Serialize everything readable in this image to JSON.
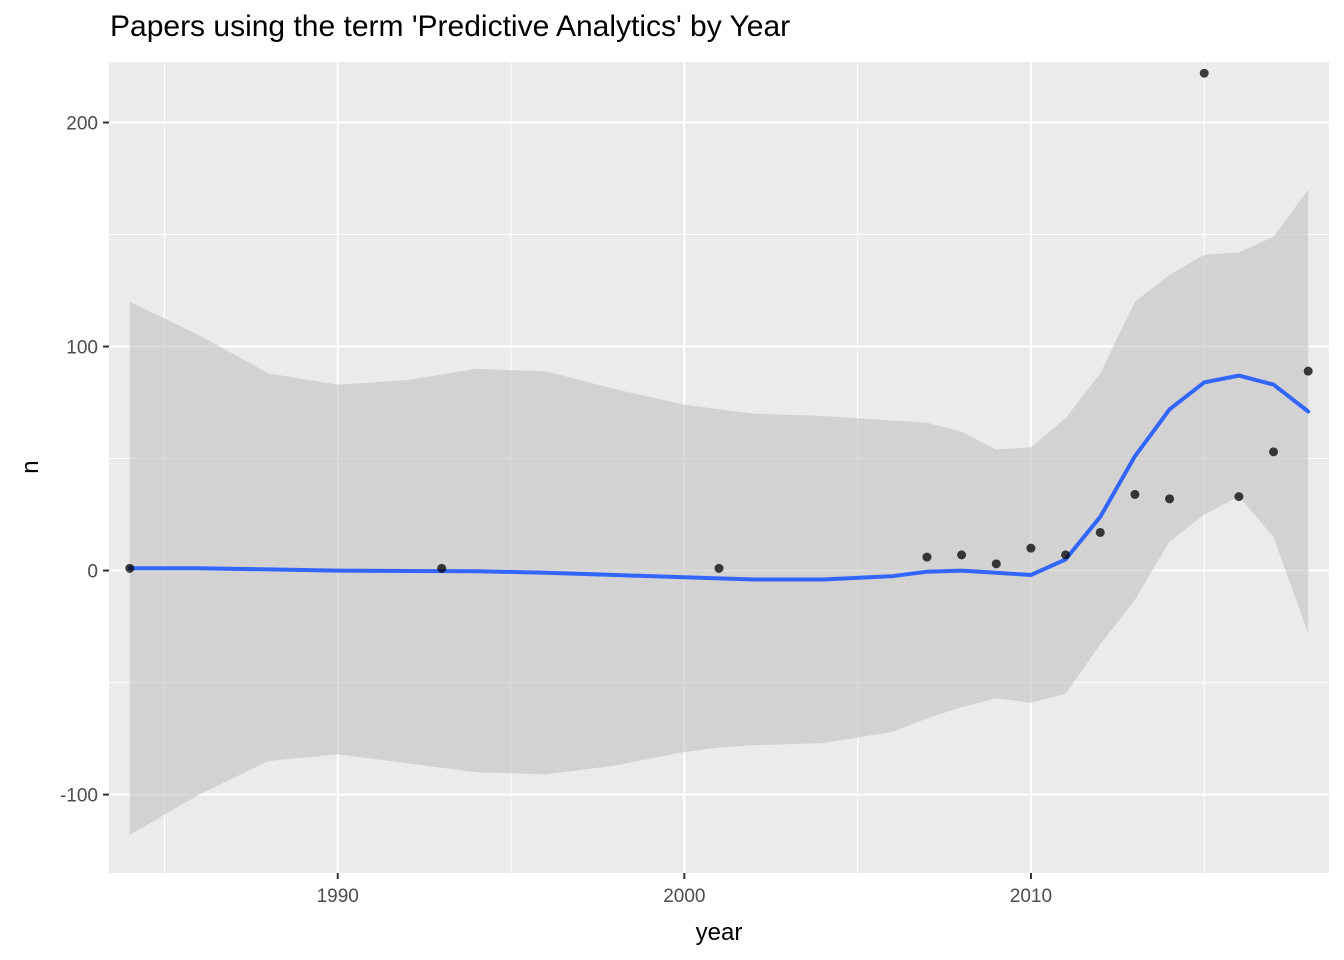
{
  "chart_data": {
    "type": "scatter",
    "title": "Papers using the term 'Predictive Analytics' by Year",
    "xlabel": "year",
    "ylabel": "n",
    "xlim": [
      1983.4,
      2018.6
    ],
    "ylim": [
      -135,
      227
    ],
    "x_ticks": [
      1990,
      2000,
      2010
    ],
    "y_ticks": [
      -100,
      0,
      100,
      200
    ],
    "x_tick_labels": [
      "1990",
      "2000",
      "2010"
    ],
    "y_tick_labels": [
      "-100",
      "0",
      "100",
      "200"
    ],
    "grid": true,
    "legend": "none",
    "colors": {
      "panel": "#ebebeb",
      "grid": "#ffffff",
      "points": "#000000",
      "smooth_line": "#3366ff",
      "ribbon": "#bdbdbd"
    },
    "points": [
      {
        "x": 1984,
        "y": 1
      },
      {
        "x": 1993,
        "y": 1
      },
      {
        "x": 2001,
        "y": 1
      },
      {
        "x": 2007,
        "y": 6
      },
      {
        "x": 2008,
        "y": 7
      },
      {
        "x": 2009,
        "y": 3
      },
      {
        "x": 2010,
        "y": 10
      },
      {
        "x": 2011,
        "y": 7
      },
      {
        "x": 2012,
        "y": 17
      },
      {
        "x": 2013,
        "y": 34
      },
      {
        "x": 2014,
        "y": 32
      },
      {
        "x": 2015,
        "y": 222
      },
      {
        "x": 2016,
        "y": 33
      },
      {
        "x": 2017,
        "y": 53
      },
      {
        "x": 2018,
        "y": 89
      }
    ],
    "smooth": {
      "x": [
        1984,
        1986,
        1988,
        1990,
        1992,
        1994,
        1996,
        1998,
        2000,
        2001,
        2002,
        2004,
        2006,
        2007,
        2008,
        2009,
        2010,
        2011,
        2012,
        2013,
        2014,
        2015,
        2016,
        2017,
        2018
      ],
      "fit": [
        1,
        1,
        0.5,
        0,
        -0.2,
        -0.3,
        -1,
        -2,
        -3,
        -3.5,
        -4,
        -4,
        -2.5,
        -0.5,
        0,
        -1,
        -2,
        5,
        24,
        51,
        72,
        84,
        87,
        83,
        71
      ],
      "upper": [
        120,
        105,
        88,
        83,
        85,
        90,
        89,
        81,
        74,
        72,
        70,
        69,
        67,
        66,
        62,
        54,
        55,
        68,
        88,
        120,
        132,
        141,
        142,
        149,
        170
      ],
      "lower": [
        -118,
        -100,
        -85,
        -82,
        -86,
        -90,
        -91,
        -87,
        -81,
        -79,
        -78,
        -77,
        -72,
        -66,
        -61,
        -57,
        -59,
        -55,
        -33,
        -13,
        13,
        25,
        33,
        15,
        -28
      ]
    }
  }
}
